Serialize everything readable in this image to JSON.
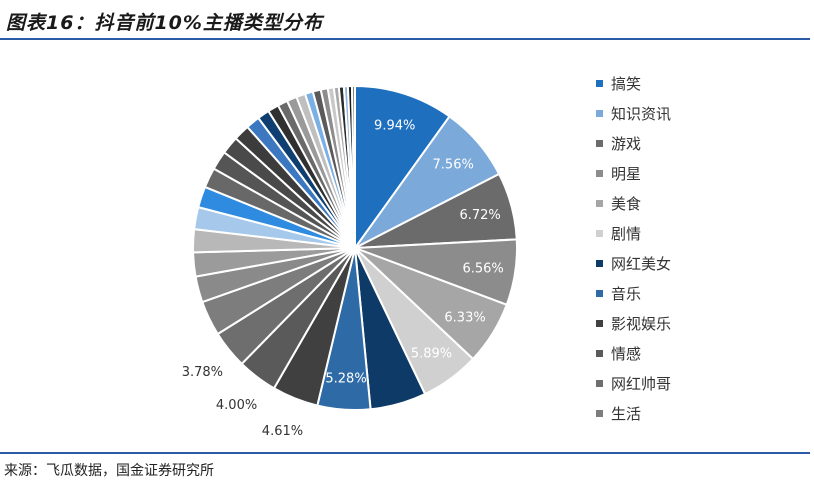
{
  "header": {
    "title": "图表16：抖音前10%主播类型分布"
  },
  "footer": {
    "source": "来源：飞瓜数据，国金证券研究所"
  },
  "chart_data": {
    "type": "pie",
    "title": "",
    "labels": [
      "搞笑",
      "知识资讯",
      "游戏",
      "明星",
      "美食",
      "剧情",
      "网红美女",
      "音乐",
      "影视娱乐",
      "情感",
      "网红帅哥",
      "生活",
      "",
      "",
      "",
      "",
      "",
      "",
      "",
      "",
      "",
      "",
      "",
      "",
      "",
      "",
      "",
      "",
      "",
      "",
      "",
      "",
      "",
      "",
      "",
      ""
    ],
    "values": [
      9.94,
      7.56,
      6.72,
      6.56,
      6.33,
      5.89,
      5.6,
      5.28,
      4.61,
      4.0,
      3.78,
      3.5,
      2.6,
      2.4,
      2.3,
      2.2,
      2.1,
      2.0,
      1.9,
      1.8,
      1.6,
      1.4,
      1.2,
      1.1,
      1.0,
      1.0,
      0.9,
      0.8,
      0.8,
      0.7,
      0.6,
      0.5,
      0.5,
      0.4,
      0.4,
      0.3
    ],
    "data_labels": [
      "9.94%",
      "7.56%",
      "6.72%",
      "6.56%",
      "6.33%",
      "5.89%",
      "",
      "5.28%",
      "4.61%",
      "4.00%",
      "3.78%",
      "",
      "",
      "",
      "",
      "",
      "",
      "",
      "",
      "",
      "",
      "",
      "",
      "",
      "",
      "",
      "",
      "",
      "",
      "",
      "",
      "",
      "",
      "",
      "",
      ""
    ],
    "colors": [
      "#1f6fbf",
      "#7aa9da",
      "#6b6b6b",
      "#8c8c8c",
      "#a6a6a6",
      "#d0d0d0",
      "#0d3a66",
      "#2e6aa6",
      "#404040",
      "#5a5a5a",
      "#6e6e6e",
      "#7d7d7d",
      "#8a8a8a",
      "#9b9b9b",
      "#b8b8b8",
      "#a6c8ea",
      "#2e8be0",
      "#686868",
      "#555555",
      "#4a4a4a",
      "#3c3c3c",
      "#3b78c0",
      "#0e3f70",
      "#303030",
      "#6a6a6a",
      "#9a9a9a",
      "#bfbfbf",
      "#7ab0e6",
      "#5a5a5a",
      "#8d8d8d",
      "#c8c8c8",
      "#aaaaaa",
      "#2c2c2c",
      "#8fb8e0",
      "#1a1a1a",
      "#777777"
    ],
    "legend": {
      "position": "right",
      "entries": [
        "搞笑",
        "知识资讯",
        "游戏",
        "明星",
        "美食",
        "剧情",
        "网红美女",
        "音乐",
        "影视娱乐",
        "情感",
        "网红帅哥",
        "生活"
      ]
    }
  }
}
